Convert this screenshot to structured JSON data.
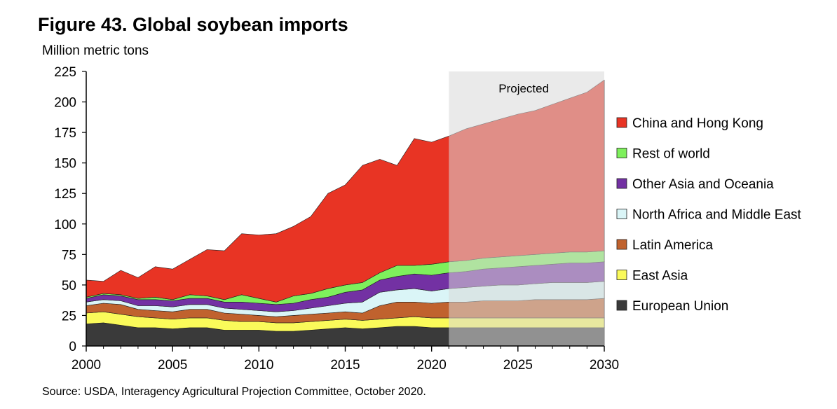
{
  "chart_data": {
    "type": "area",
    "title": "Figure 43. Global soybean imports",
    "ylabel": "Million metric tons",
    "source": "Source: USDA, Interagency Agricultural Projection Committee, October 2020.",
    "projected_label": "Projected",
    "projection_start": 2021,
    "xlim": [
      2000,
      2030
    ],
    "ylim": [
      0,
      225
    ],
    "x_ticks": [
      "2000",
      "2005",
      "2010",
      "2015",
      "2020",
      "2025",
      "2030"
    ],
    "y_ticks": [
      "0",
      "25",
      "50",
      "75",
      "100",
      "125",
      "150",
      "175",
      "200",
      "225"
    ],
    "stacked": true,
    "legend_position": "right",
    "x": [
      2000,
      2001,
      2002,
      2003,
      2004,
      2005,
      2006,
      2007,
      2008,
      2009,
      2010,
      2011,
      2012,
      2013,
      2014,
      2015,
      2016,
      2017,
      2018,
      2019,
      2020,
      2021,
      2022,
      2023,
      2024,
      2025,
      2026,
      2027,
      2028,
      2029,
      2030
    ],
    "series": [
      {
        "name": "European Union",
        "color": "#3a3a3a",
        "values": [
          18,
          19,
          17,
          15,
          15,
          14,
          15,
          15,
          13,
          13,
          13,
          12,
          12,
          13,
          14,
          15,
          14,
          15,
          16,
          16,
          15,
          15,
          15,
          15,
          15,
          15,
          15,
          15,
          15,
          15,
          15
        ]
      },
      {
        "name": "East Asia",
        "color": "#fafa5a",
        "values": [
          9,
          9,
          9,
          9,
          8,
          8,
          8,
          8,
          8,
          7,
          7,
          7,
          7,
          7,
          7,
          7,
          7,
          7,
          7,
          8,
          8,
          8,
          8,
          8,
          8,
          8,
          8,
          8,
          8,
          8,
          8
        ]
      },
      {
        "name": "Latin America",
        "color": "#c0622e",
        "values": [
          6,
          7,
          8,
          6,
          6,
          6,
          7,
          7,
          6,
          6,
          5,
          5,
          6,
          6,
          6,
          6,
          6,
          11,
          13,
          12,
          12,
          13,
          13,
          14,
          14,
          14,
          15,
          15,
          15,
          15,
          16
        ]
      },
      {
        "name": "North Africa and Middle East",
        "color": "#daf5f7",
        "values": [
          3,
          3,
          3,
          3,
          4,
          4,
          4,
          4,
          4,
          4,
          4,
          4,
          4,
          5,
          6,
          7,
          9,
          11,
          10,
          11,
          10,
          11,
          12,
          12,
          13,
          13,
          13,
          14,
          14,
          14,
          14
        ]
      },
      {
        "name": "Other Asia and Oceania",
        "color": "#7331a3",
        "values": [
          3,
          4,
          4,
          5,
          5,
          5,
          5,
          5,
          5,
          6,
          6,
          6,
          6,
          7,
          7,
          9,
          10,
          10,
          11,
          12,
          13,
          13,
          13,
          14,
          14,
          15,
          15,
          15,
          16,
          16,
          16
        ]
      },
      {
        "name": "Rest of world",
        "color": "#7ef05c",
        "values": [
          1,
          1,
          1,
          1,
          2,
          1,
          3,
          2,
          2,
          6,
          4,
          2,
          6,
          5,
          7,
          6,
          6,
          6,
          9,
          7,
          9,
          9,
          9,
          9,
          9,
          9,
          9,
          9,
          9,
          9,
          9
        ]
      },
      {
        "name": "China and Hong Kong",
        "color": "#e83424",
        "values": [
          14,
          10,
          20,
          17,
          25,
          25,
          29,
          38,
          40,
          50,
          52,
          56,
          57,
          63,
          78,
          82,
          96,
          93,
          82,
          104,
          100,
          103,
          108,
          110,
          113,
          116,
          118,
          122,
          126,
          131,
          140
        ]
      }
    ]
  }
}
